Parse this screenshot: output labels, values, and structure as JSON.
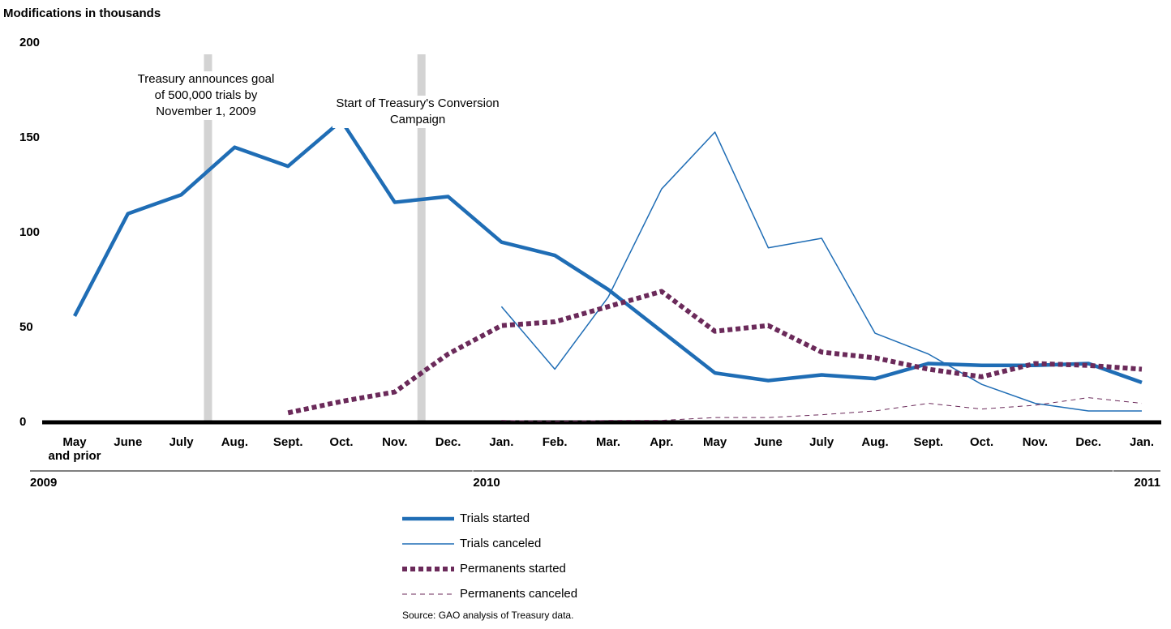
{
  "chart_data": {
    "type": "line",
    "y_axis_label": "Modifications in thousands",
    "categories": [
      "May\nand prior",
      "June",
      "July",
      "Aug.",
      "Sept.",
      "Oct.",
      "Nov.",
      "Dec.",
      "Jan.",
      "Feb.",
      "Mar.",
      "Apr.",
      "May",
      "June",
      "July",
      "Aug.",
      "Sept.",
      "Oct.",
      "Nov.",
      "Dec.",
      "Jan."
    ],
    "years": [
      "2009",
      "2010",
      "2011"
    ],
    "ylim": [
      0,
      200
    ],
    "yticks": [
      0,
      50,
      100,
      150,
      200
    ],
    "grid": false,
    "annotations": [
      "Treasury announces goal of 500,000 trials by November 1, 2009",
      "Start of Treasury's Conversion Campaign"
    ],
    "series": [
      {
        "name": "Trials started",
        "color": "#1f6db5",
        "values": [
          56,
          110,
          120,
          145,
          135,
          159,
          116,
          119,
          95,
          88,
          70,
          48,
          26,
          22,
          25,
          23,
          31,
          30,
          30,
          31,
          21
        ]
      },
      {
        "name": "Trials canceled",
        "color": "#1f6db5",
        "values": [
          null,
          null,
          null,
          null,
          null,
          null,
          null,
          null,
          61,
          28,
          66,
          123,
          153,
          92,
          97,
          47,
          36,
          20,
          10,
          6,
          6
        ]
      },
      {
        "name": "Permanents started",
        "color": "#6b2a5a",
        "values": [
          null,
          null,
          null,
          null,
          5,
          11,
          16,
          36,
          51,
          53,
          61,
          69,
          48,
          51,
          37,
          34,
          28,
          24,
          31,
          30,
          28
        ]
      },
      {
        "name": "Permanents canceled",
        "color": "#6b2a5a",
        "values": [
          null,
          null,
          null,
          null,
          null,
          null,
          null,
          null,
          1,
          0.5,
          1,
          1,
          2.5,
          2.5,
          4,
          6,
          10,
          7,
          9,
          13,
          10
        ]
      }
    ],
    "source": "Source: GAO analysis of Treasury data."
  }
}
